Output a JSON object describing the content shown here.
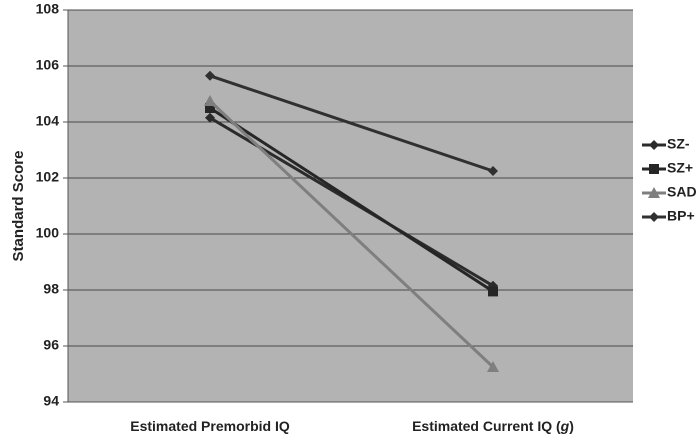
{
  "chart_data": {
    "type": "line",
    "ylabel": "Standard Score",
    "xlabel": "",
    "categories": [
      "Estimated Premorbid IQ",
      "Estimated Current IQ (g)"
    ],
    "category_parts": [
      [
        {
          "text": "Estimated Premorbid IQ",
          "italic": false
        }
      ],
      [
        {
          "text": "Estimated Current IQ (",
          "italic": false
        },
        {
          "text": "g",
          "italic": true
        },
        {
          "text": ")",
          "italic": false
        }
      ]
    ],
    "ylim": [
      94,
      108
    ],
    "yticks": [
      94,
      96,
      98,
      100,
      102,
      104,
      106,
      108
    ],
    "grid": true,
    "legend_position": "right",
    "plot_background": "#b3b3b3",
    "series": [
      {
        "name": "SZ-",
        "values": [
          104.15,
          98.15
        ],
        "marker": "diamond",
        "color": "#2b2b2b"
      },
      {
        "name": "SZ+",
        "values": [
          104.5,
          97.95
        ],
        "marker": "square",
        "color": "#262626"
      },
      {
        "name": "SAD",
        "values": [
          104.75,
          95.25
        ],
        "marker": "triangle",
        "color": "#7f7f7f"
      },
      {
        "name": "BP+",
        "values": [
          105.65,
          102.25
        ],
        "marker": "diamond",
        "color": "#303030"
      }
    ]
  }
}
